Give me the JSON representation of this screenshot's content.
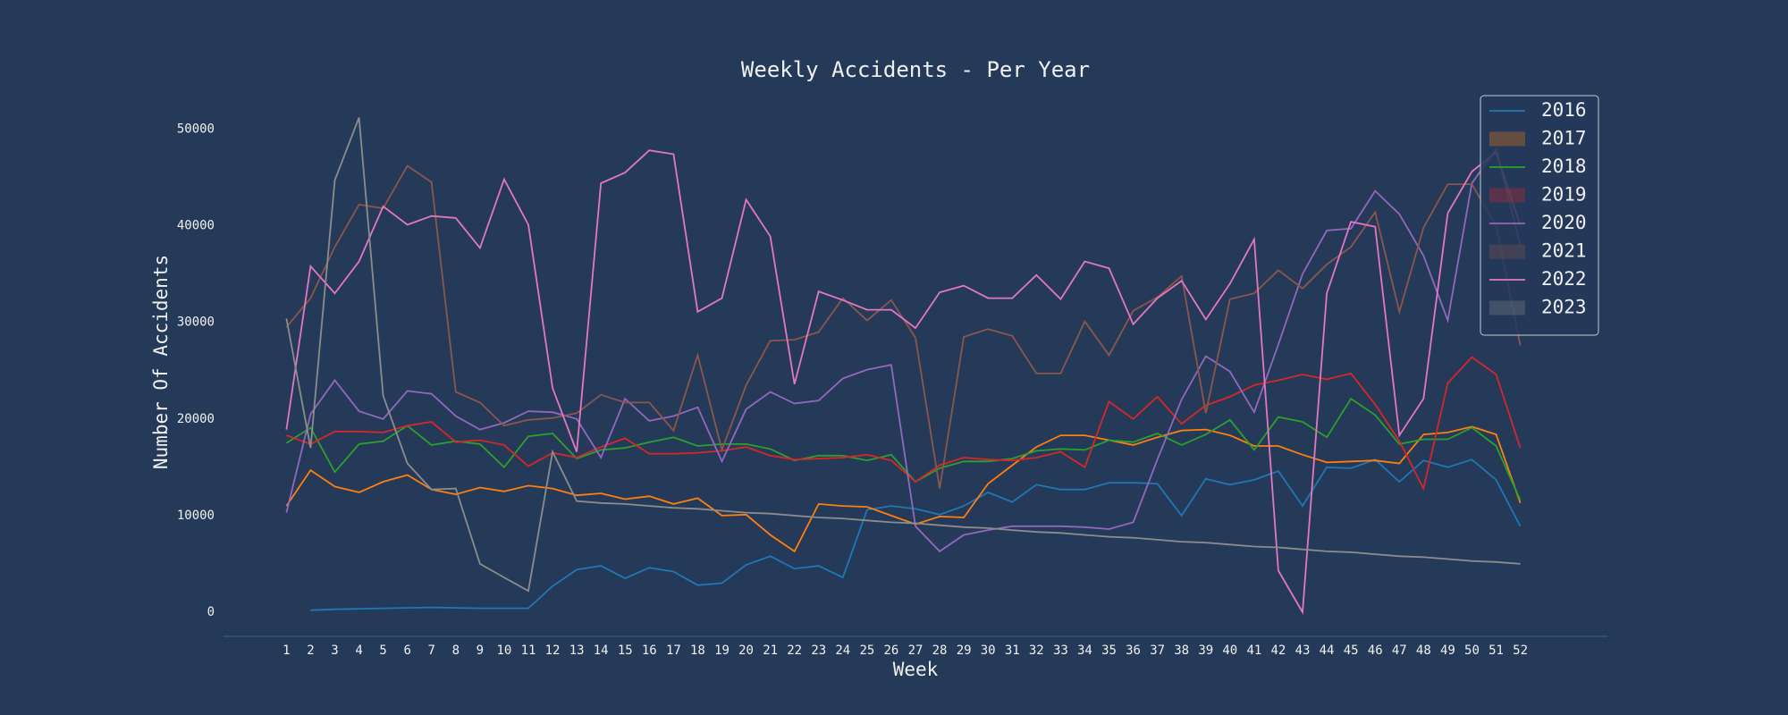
{
  "chart_data": {
    "type": "line",
    "title": "Weekly Accidents - Per Year",
    "x_label": "Week",
    "y_label": "Number Of Accidents",
    "x": [
      1,
      2,
      3,
      4,
      5,
      6,
      7,
      8,
      9,
      10,
      11,
      12,
      13,
      14,
      15,
      16,
      17,
      18,
      19,
      20,
      21,
      22,
      23,
      24,
      25,
      26,
      27,
      28,
      29,
      30,
      31,
      32,
      33,
      34,
      35,
      36,
      37,
      38,
      39,
      40,
      41,
      42,
      43,
      44,
      45,
      46,
      47,
      48,
      49,
      50,
      51,
      52
    ],
    "xlim": [
      -1.6,
      55.6
    ],
    "xticks": [
      1,
      2,
      3,
      4,
      5,
      6,
      7,
      8,
      9,
      10,
      11,
      12,
      13,
      14,
      15,
      16,
      17,
      18,
      19,
      20,
      21,
      22,
      23,
      24,
      25,
      26,
      27,
      28,
      29,
      30,
      31,
      32,
      33,
      34,
      35,
      36,
      37,
      38,
      39,
      40,
      41,
      42,
      43,
      44,
      45,
      46,
      47,
      48,
      49,
      50,
      51,
      52
    ],
    "ylim": [
      -2500,
      53000
    ],
    "yticks": [
      0,
      10000,
      20000,
      30000,
      40000,
      50000
    ],
    "grid": false,
    "legend": "upper right",
    "series": [
      {
        "name": "2016",
        "color": "#1f77b4",
        "legend_marker": "line",
        "values": [
          null,
          200,
          300,
          350,
          400,
          450,
          500,
          450,
          400,
          400,
          400,
          2700,
          4400,
          4800,
          3500,
          4600,
          4200,
          2800,
          3000,
          4900,
          5800,
          4500,
          4800,
          3600,
          10600,
          11000,
          10700,
          10100,
          11000,
          12400,
          11400,
          13200,
          12700,
          12700,
          13400,
          13400,
          13300,
          10000,
          13800,
          13200,
          13700,
          14600,
          11000,
          15000,
          14900,
          15800,
          13500,
          15700,
          15000,
          15800,
          13700,
          8900
        ]
      },
      {
        "name": "2017",
        "color": "#ff7f0e",
        "legend_marker": "patch",
        "values": [
          11000,
          14700,
          13000,
          12400,
          13500,
          14200,
          12700,
          12200,
          12900,
          12500,
          13100,
          12800,
          12100,
          12300,
          11700,
          12000,
          11200,
          11800,
          10000,
          10100,
          8000,
          6300,
          11200,
          11000,
          10900,
          10000,
          9100,
          9900,
          9800,
          13300,
          15200,
          17100,
          18300,
          18300,
          17800,
          17300,
          18100,
          18800,
          18900,
          18300,
          17200,
          17200,
          16300,
          15500,
          15600,
          15700,
          15400,
          18400,
          18600,
          19200,
          18400,
          11300
        ]
      },
      {
        "name": "2018",
        "color": "#2ca02c",
        "legend_marker": "line",
        "values": [
          17500,
          19100,
          14500,
          17400,
          17700,
          19300,
          17300,
          17700,
          17400,
          15000,
          18200,
          18500,
          15900,
          16800,
          17000,
          17600,
          18100,
          17200,
          17400,
          17400,
          16900,
          15700,
          16200,
          16200,
          15700,
          16300,
          13500,
          14900,
          15600,
          15600,
          15900,
          16700,
          16900,
          16800,
          17800,
          17600,
          18500,
          17300,
          18400,
          19900,
          16800,
          20200,
          19700,
          18100,
          22100,
          20400,
          17400,
          17900,
          17900,
          19100,
          17200,
          11600
        ]
      },
      {
        "name": "2019",
        "color": "#d62728",
        "legend_marker": "patch",
        "values": [
          18300,
          17400,
          18700,
          18700,
          18600,
          19300,
          19700,
          17600,
          17800,
          17300,
          15100,
          16500,
          16000,
          17100,
          18000,
          16400,
          16400,
          16500,
          16700,
          17100,
          16200,
          15800,
          15900,
          16000,
          16300,
          15700,
          13500,
          15200,
          16000,
          15800,
          15700,
          16000,
          16600,
          15000,
          21800,
          20000,
          22300,
          19500,
          21400,
          22300,
          23500,
          24000,
          24600,
          24100,
          24700,
          21500,
          17700,
          12800,
          23700,
          26400,
          24600,
          17000
        ]
      },
      {
        "name": "2020",
        "color": "#9467bd",
        "legend_marker": "line",
        "values": [
          10300,
          20500,
          24000,
          20800,
          20000,
          22900,
          22600,
          20300,
          18900,
          19600,
          20800,
          20700,
          20000,
          16000,
          22100,
          19800,
          20300,
          21200,
          15600,
          21000,
          22800,
          21600,
          21900,
          24200,
          25100,
          25600,
          8900,
          6300,
          8000,
          8500,
          8900,
          8900,
          8900,
          8800,
          8600,
          9300,
          15800,
          22000,
          26500,
          24900,
          20700,
          27700,
          35000,
          39500,
          39700,
          43600,
          41200,
          36900,
          30200,
          44400,
          47900,
          38000
        ]
      },
      {
        "name": "2021",
        "color": "#8c564b",
        "legend_marker": "patch",
        "values": [
          29500,
          32500,
          37800,
          42200,
          41800,
          46200,
          44500,
          22800,
          21700,
          19300,
          19900,
          20100,
          20600,
          22500,
          21700,
          21700,
          18800,
          26600,
          16800,
          23500,
          28100,
          28200,
          29000,
          32500,
          30200,
          32300,
          28400,
          12800,
          28500,
          29300,
          28600,
          24700,
          24700,
          30100,
          26600,
          31200,
          32600,
          34800,
          20600,
          32400,
          33000,
          35400,
          33500,
          36000,
          37800,
          41400,
          31100,
          39800,
          44300,
          44300,
          40000,
          27600
        ]
      },
      {
        "name": "2022",
        "color": "#e377c2",
        "legend_marker": "line",
        "values": [
          18900,
          35800,
          33000,
          36300,
          42000,
          40100,
          41000,
          40800,
          37700,
          44800,
          40100,
          23200,
          16600,
          44400,
          45500,
          47800,
          47400,
          31100,
          32500,
          42700,
          38900,
          23600,
          33200,
          32300,
          31300,
          31300,
          29400,
          33100,
          33800,
          32500,
          32500,
          34900,
          32400,
          36300,
          35600,
          29800,
          32500,
          34300,
          30300,
          34000,
          38600,
          4300,
          0,
          33000,
          40400,
          39900,
          18300,
          22100,
          41300,
          45600,
          47600,
          40000
        ]
      },
      {
        "name": "2023",
        "color": "#8c8c8c",
        "legend_marker": "patch",
        "values": [
          30400,
          17000,
          44700,
          51200,
          22400,
          15400,
          12700,
          12800,
          5000,
          3600,
          2200,
          16600,
          11500,
          11300,
          11200,
          11000,
          10800,
          10700,
          10500,
          10300,
          10200,
          10000,
          9800,
          9700,
          9500,
          9300,
          9200,
          9000,
          8800,
          8700,
          8500,
          8300,
          8200,
          8000,
          7800,
          7700,
          7500,
          7300,
          7200,
          7000,
          6800,
          6700,
          6500,
          6300,
          6200,
          6000,
          5800,
          5700,
          5500,
          5300,
          5200,
          5000
        ]
      }
    ]
  }
}
